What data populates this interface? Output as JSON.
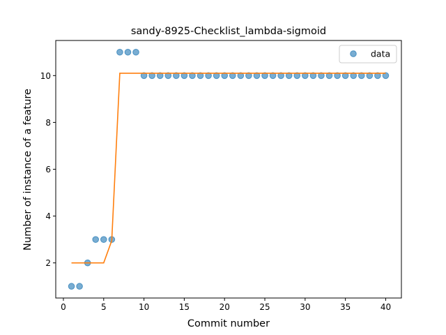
{
  "chart_data": {
    "type": "scatter",
    "title": "sandy-8925-Checklist_lambda-sigmoid",
    "xlabel": "Commit number",
    "ylabel": "Number of instance of a feature",
    "xlim": [
      -0.95,
      41.95
    ],
    "ylim": [
      0.5,
      11.5
    ],
    "xticks": [
      0,
      5,
      10,
      15,
      20,
      25,
      30,
      35,
      40
    ],
    "yticks": [
      2,
      4,
      6,
      8,
      10
    ],
    "grid": false,
    "legend_position": "top-right",
    "series": [
      {
        "name": "data",
        "kind": "scatter",
        "color": "#1f77b4",
        "x": [
          1,
          2,
          3,
          4,
          5,
          6,
          7,
          8,
          9,
          10,
          11,
          12,
          13,
          14,
          15,
          16,
          17,
          18,
          19,
          20,
          21,
          22,
          23,
          24,
          25,
          26,
          27,
          28,
          29,
          30,
          31,
          32,
          33,
          34,
          35,
          36,
          37,
          38,
          39,
          40
        ],
        "y": [
          1,
          1,
          2,
          3,
          3,
          3,
          11,
          11,
          11,
          10,
          10,
          10,
          10,
          10,
          10,
          10,
          10,
          10,
          10,
          10,
          10,
          10,
          10,
          10,
          10,
          10,
          10,
          10,
          10,
          10,
          10,
          10,
          10,
          10,
          10,
          10,
          10,
          10,
          10,
          10
        ]
      },
      {
        "kind": "line",
        "color": "#ff7f0e",
        "x": [
          1,
          2,
          3,
          4,
          5,
          6,
          7,
          8,
          9,
          10,
          11,
          12,
          13,
          14,
          15,
          16,
          17,
          18,
          19,
          20,
          21,
          22,
          23,
          24,
          25,
          26,
          27,
          28,
          29,
          30,
          31,
          32,
          33,
          34,
          35,
          36,
          37,
          38,
          39,
          40
        ],
        "y": [
          2,
          2,
          2,
          2,
          2,
          2.95,
          10.1,
          10.1,
          10.1,
          10.1,
          10.1,
          10.1,
          10.1,
          10.1,
          10.1,
          10.1,
          10.1,
          10.1,
          10.1,
          10.1,
          10.1,
          10.1,
          10.1,
          10.1,
          10.1,
          10.1,
          10.1,
          10.1,
          10.1,
          10.1,
          10.1,
          10.1,
          10.1,
          10.1,
          10.1,
          10.1,
          10.1,
          10.1,
          10.1,
          10.1
        ]
      }
    ]
  }
}
